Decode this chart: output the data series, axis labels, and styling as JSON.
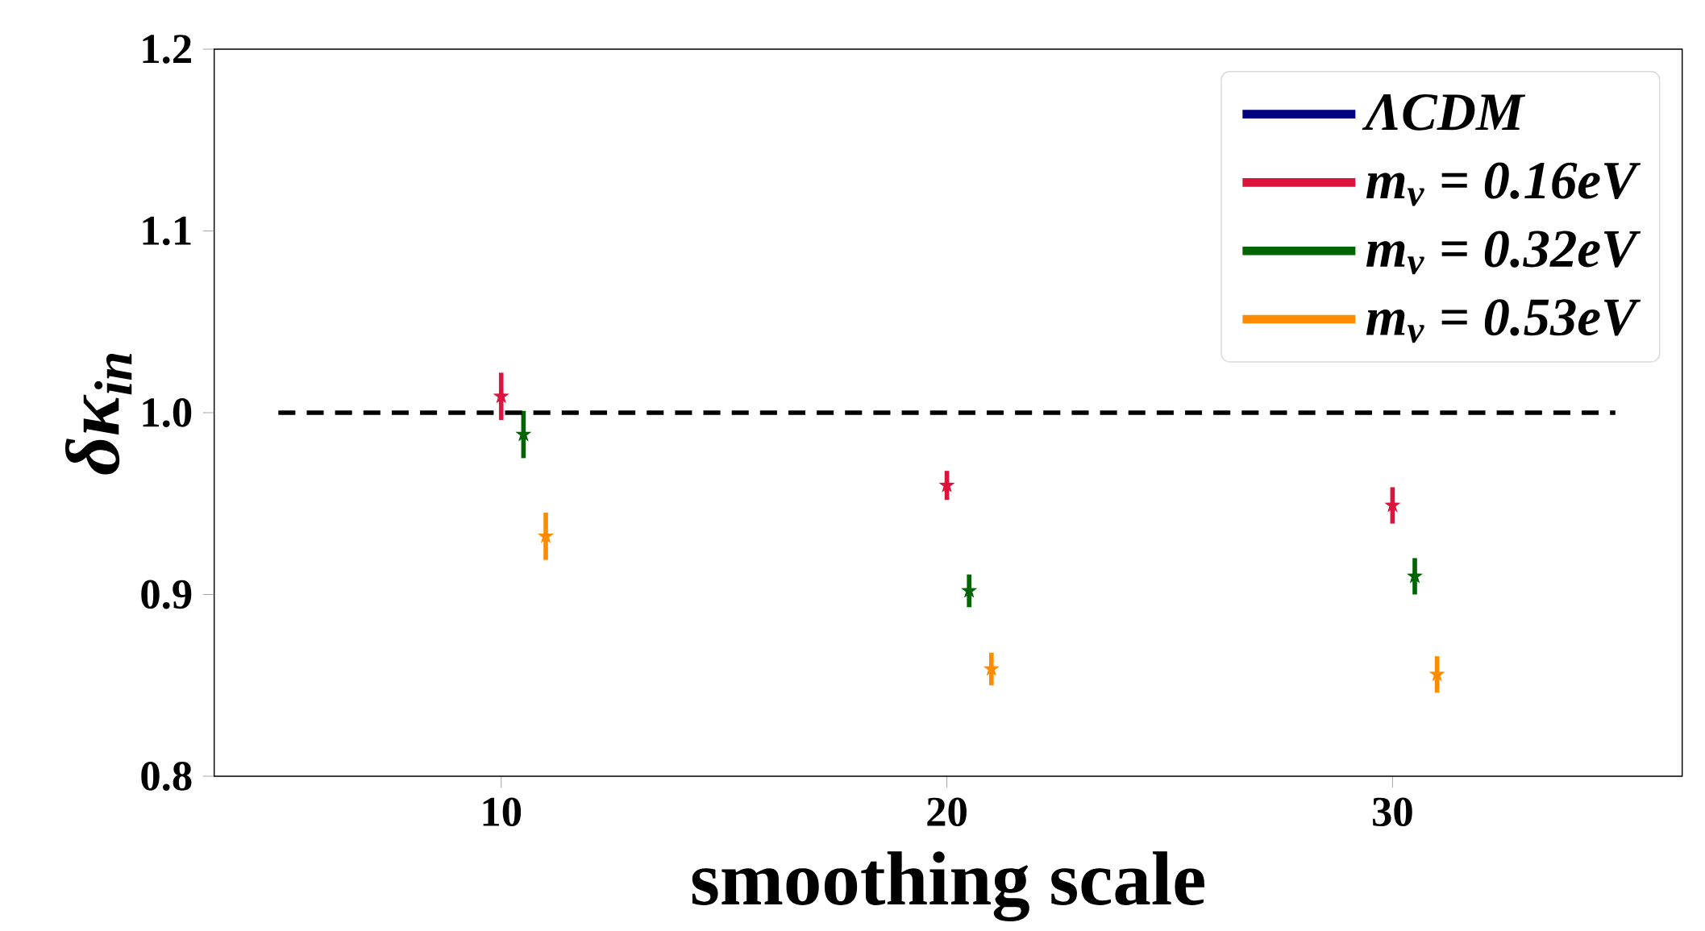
{
  "chart_data": {
    "type": "scatter",
    "xlabel": "smoothing scale",
    "ylabel": "δκ$_{in}$",
    "xlim": [
      3.56,
      36.5
    ],
    "ylim": [
      0.8,
      1.2
    ],
    "xticks": [
      10,
      20,
      30
    ],
    "yticks": [
      {
        "value": 0.8,
        "label": "0.8"
      },
      {
        "value": 0.9,
        "label": "0.9"
      },
      {
        "value": 1.0,
        "label": "1.0"
      },
      {
        "value": 1.1,
        "label": "1.1"
      },
      {
        "value": 1.2,
        "label": "1.2"
      }
    ],
    "legend": "top right",
    "marker": "star",
    "grid": false,
    "series": [
      {
        "name": "ΛCDM",
        "color": "#000080"
      },
      {
        "name": "m$_{ν}$ = 0.16eV",
        "color": "#dc143c",
        "x": [
          10,
          20,
          30
        ],
        "values": [
          1.009,
          0.96,
          0.949
        ],
        "errors": [
          0.013,
          0.008,
          0.01
        ]
      },
      {
        "name": "m$_{ν}$ = 0.32eV",
        "color": "#006400",
        "x": [
          10.5,
          20.5,
          30.5
        ],
        "values": [
          0.988,
          0.902,
          0.91
        ],
        "errors": [
          0.013,
          0.009,
          0.01
        ]
      },
      {
        "name": "m$_{ν}$ = 0.53eV",
        "color": "#ff8c00",
        "x": [
          11,
          21,
          31
        ],
        "values": [
          0.932,
          0.859,
          0.856
        ],
        "errors": [
          0.013,
          0.009,
          0.01
        ]
      },
      {
        "type": "line",
        "color": "#000000",
        "line_style": "dashed",
        "marker": "none",
        "x": [
          5,
          35
        ],
        "values": [
          1.0,
          1.0
        ]
      }
    ]
  }
}
